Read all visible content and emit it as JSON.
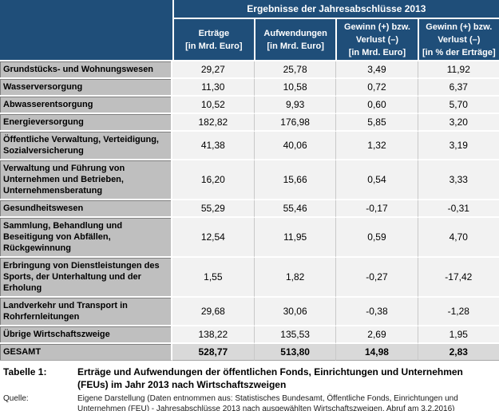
{
  "chart_data": {
    "type": "table",
    "title": "Ergebnisse der Jahresabschlüsse 2013",
    "columns": [
      {
        "label": "Erträge\n[in Mrd. Euro]"
      },
      {
        "label": "Aufwendungen\n[in Mrd. Euro]"
      },
      {
        "label": "Gewinn (+) bzw.\nVerlust (–)\n[in Mrd. Euro]"
      },
      {
        "label": "Gewinn (+) bzw.\nVerlust (–)\n[in % der Erträge]"
      }
    ],
    "rows": [
      {
        "label": "Grundstücks- und Wohnungswesen",
        "values": [
          "29,27",
          "25,78",
          "3,49",
          "11,92"
        ]
      },
      {
        "label": "Wasserversorgung",
        "values": [
          "11,30",
          "10,58",
          "0,72",
          "6,37"
        ]
      },
      {
        "label": "Abwasserentsorgung",
        "values": [
          "10,52",
          "9,93",
          "0,60",
          "5,70"
        ]
      },
      {
        "label": "Energieversorgung",
        "values": [
          "182,82",
          "176,98",
          "5,85",
          "3,20"
        ]
      },
      {
        "label": "Öffentliche Verwaltung, Verteidigung, Sozialversicherung",
        "values": [
          "41,38",
          "40,06",
          "1,32",
          "3,19"
        ]
      },
      {
        "label": "Verwaltung und Führung von Unternehmen und Betrieben, Unternehmensberatung",
        "values": [
          "16,20",
          "15,66",
          "0,54",
          "3,33"
        ]
      },
      {
        "label": "Gesundheitswesen",
        "values": [
          "55,29",
          "55,46",
          "-0,17",
          "-0,31"
        ]
      },
      {
        "label": "Sammlung, Behandlung und Beseitigung von Abfällen, Rückgewinnung",
        "values": [
          "12,54",
          "11,95",
          "0,59",
          "4,70"
        ]
      },
      {
        "label": "Erbringung von Dienstleistungen des Sports, der Unterhaltung und der Erholung",
        "values": [
          "1,55",
          "1,82",
          "-0,27",
          "-17,42"
        ]
      },
      {
        "label": "Landverkehr und Transport in Rohrfernleitungen",
        "values": [
          "29,68",
          "30,06",
          "-0,38",
          "-1,28"
        ]
      },
      {
        "label": "Übrige Wirtschaftszweige",
        "values": [
          "138,22",
          "135,53",
          "2,69",
          "1,95"
        ]
      },
      {
        "label": "GESAMT",
        "values": [
          "528,77",
          "513,80",
          "14,98",
          "2,83"
        ]
      }
    ]
  },
  "caption": {
    "tag": "Tabelle 1:",
    "text": "Erträge und Aufwendungen der öffentlichen Fonds, Einrichtungen und Unternehmen (FEUs) im Jahr 2013 nach Wirtschaftszweigen"
  },
  "source": {
    "tag": "Quelle:",
    "text": "Eigene Darstellung (Daten entnommen aus: Statistisches Bundesamt, Öffentliche Fonds, Einrichtungen und Unternehmen (FEU) - Jahresabschlüsse 2013 nach ausgewählten Wirtschaftszweigen, Abruf am 3.2.2016)"
  },
  "colors": {
    "header_navy": "#1F4E79",
    "label_gray": "#BFBFBF",
    "data_bg": "#F2F2F2",
    "total_bg": "#D9D9D9",
    "row_gap_white": "#FFFFFF",
    "label_edge_dark": "#7F7F7F"
  }
}
